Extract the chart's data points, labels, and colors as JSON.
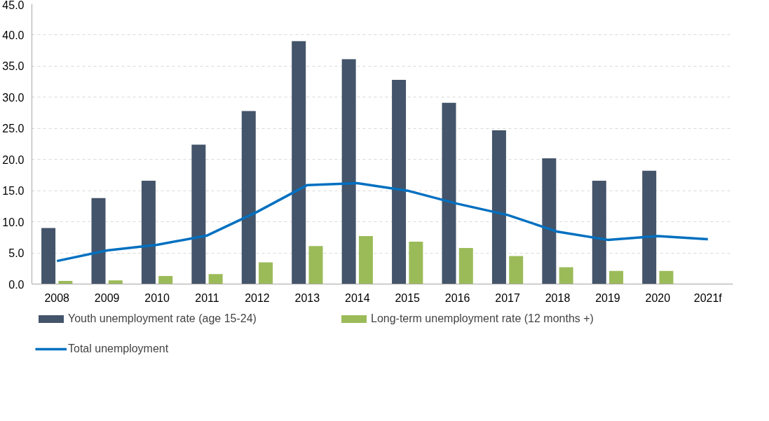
{
  "chart_data": {
    "type": "bar",
    "categories": [
      "2008",
      "2009",
      "2010",
      "2011",
      "2012",
      "2013",
      "2014",
      "2015",
      "2016",
      "2017",
      "2018",
      "2019",
      "2020",
      "2021f"
    ],
    "series": [
      {
        "name": "Youth unemployment rate (age 15-24)",
        "color": "#44546a",
        "values": [
          9.0,
          13.8,
          16.6,
          22.4,
          27.8,
          39.0,
          36.1,
          32.8,
          29.1,
          24.7,
          20.2,
          16.6,
          18.2,
          null
        ]
      },
      {
        "name": "Long-term unemployment rate (12 months +)",
        "color": "#9bbb59",
        "values": [
          0.5,
          0.6,
          1.3,
          1.6,
          3.5,
          6.1,
          7.7,
          6.8,
          5.8,
          4.5,
          2.7,
          2.1,
          2.1,
          null
        ]
      },
      {
        "name": "Total unemployment",
        "type": "line",
        "color": "#0070c0",
        "values": [
          3.7,
          5.4,
          6.3,
          7.8,
          11.6,
          15.9,
          16.2,
          15.0,
          12.9,
          11.1,
          8.4,
          7.1,
          7.7,
          7.2
        ]
      }
    ],
    "ylim": [
      0,
      45
    ],
    "yticks": [
      {
        "value": 0,
        "label": "0.0"
      },
      {
        "value": 5,
        "label": "5.0"
      },
      {
        "value": 10,
        "label": "10.0"
      },
      {
        "value": 15,
        "label": "15.0"
      },
      {
        "value": 20,
        "label": "20.0"
      },
      {
        "value": 25,
        "label": "25.0"
      },
      {
        "value": 30,
        "label": "30.0"
      },
      {
        "value": 35,
        "label": "35.0"
      },
      {
        "value": 40,
        "label": "40.0"
      },
      {
        "value": 45,
        "label": "45.0"
      }
    ],
    "grid": "y",
    "legend": "bottom",
    "line_style": "solid",
    "marker": "none"
  }
}
